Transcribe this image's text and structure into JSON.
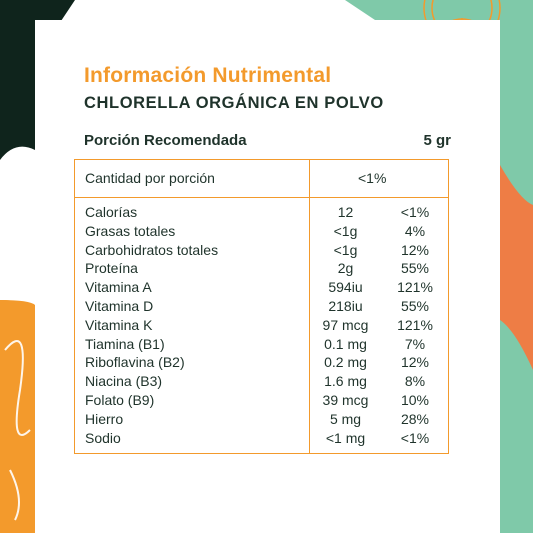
{
  "header": {
    "title": "Información Nutrimental",
    "subtitle": "CHLORELLA ORGÁNICA EN POLVO"
  },
  "portion": {
    "label": "Porción Recomendada",
    "value": "5 gr"
  },
  "table": {
    "head_label": "Cantidad por porción",
    "head_value": "<1%",
    "rows": [
      {
        "name": "Calorías",
        "amount": "12",
        "percent": "<1%"
      },
      {
        "name": "Grasas totales",
        "amount": "<1g",
        "percent": "4%"
      },
      {
        "name": "Carbohidratos totales",
        "amount": "<1g",
        "percent": "12%"
      },
      {
        "name": "Proteína",
        "amount": "2g",
        "percent": "55%"
      },
      {
        "name": "Vitamina A",
        "amount": "594iu",
        "percent": "121%"
      },
      {
        "name": "Vitamina D",
        "amount": "218iu",
        "percent": "55%"
      },
      {
        "name": "Vitamina K",
        "amount": "97 mcg",
        "percent": "121%"
      },
      {
        "name": "Tiamina (B1)",
        "amount": "0.1 mg",
        "percent": "7%"
      },
      {
        "name": "Riboflavina (B2)",
        "amount": "0.2 mg",
        "percent": "12%"
      },
      {
        "name": "Niacina (B3)",
        "amount": "1.6 mg",
        "percent": "8%"
      },
      {
        "name": "Folato (B9)",
        "amount": "39 mcg",
        "percent": "10%"
      },
      {
        "name": "Hierro",
        "amount": "5 mg",
        "percent": "28%"
      },
      {
        "name": "Sodio",
        "amount": "<1 mg",
        "percent": "<1%"
      }
    ]
  },
  "colors": {
    "accent_orange": "#f39a2c",
    "dark_green": "#0f241c",
    "mint": "#7fc9a9",
    "coral": "#ee7d45",
    "text": "#1f332b"
  }
}
